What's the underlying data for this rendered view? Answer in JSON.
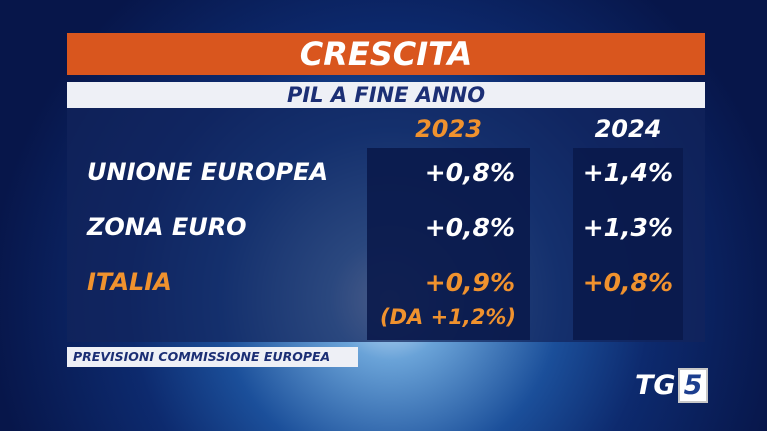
{
  "header": {
    "title": "CRESCITA",
    "subtitle": "PIL A FINE ANNO"
  },
  "table": {
    "columns": [
      "2023",
      "2024"
    ],
    "rows": [
      [
        "UNIONE EUROPEA",
        "+0,8%",
        "+1,4%"
      ],
      [
        "ZONA EURO",
        "+0,8%",
        "+1,3%"
      ],
      [
        "ITALIA",
        "+0,9%",
        "+0,8%"
      ]
    ],
    "note": "(DA +1,2%)"
  },
  "footer": "PREVISIONI COMMISSIONE EUROPEA",
  "logo": {
    "text": "TG",
    "number": "5"
  }
}
